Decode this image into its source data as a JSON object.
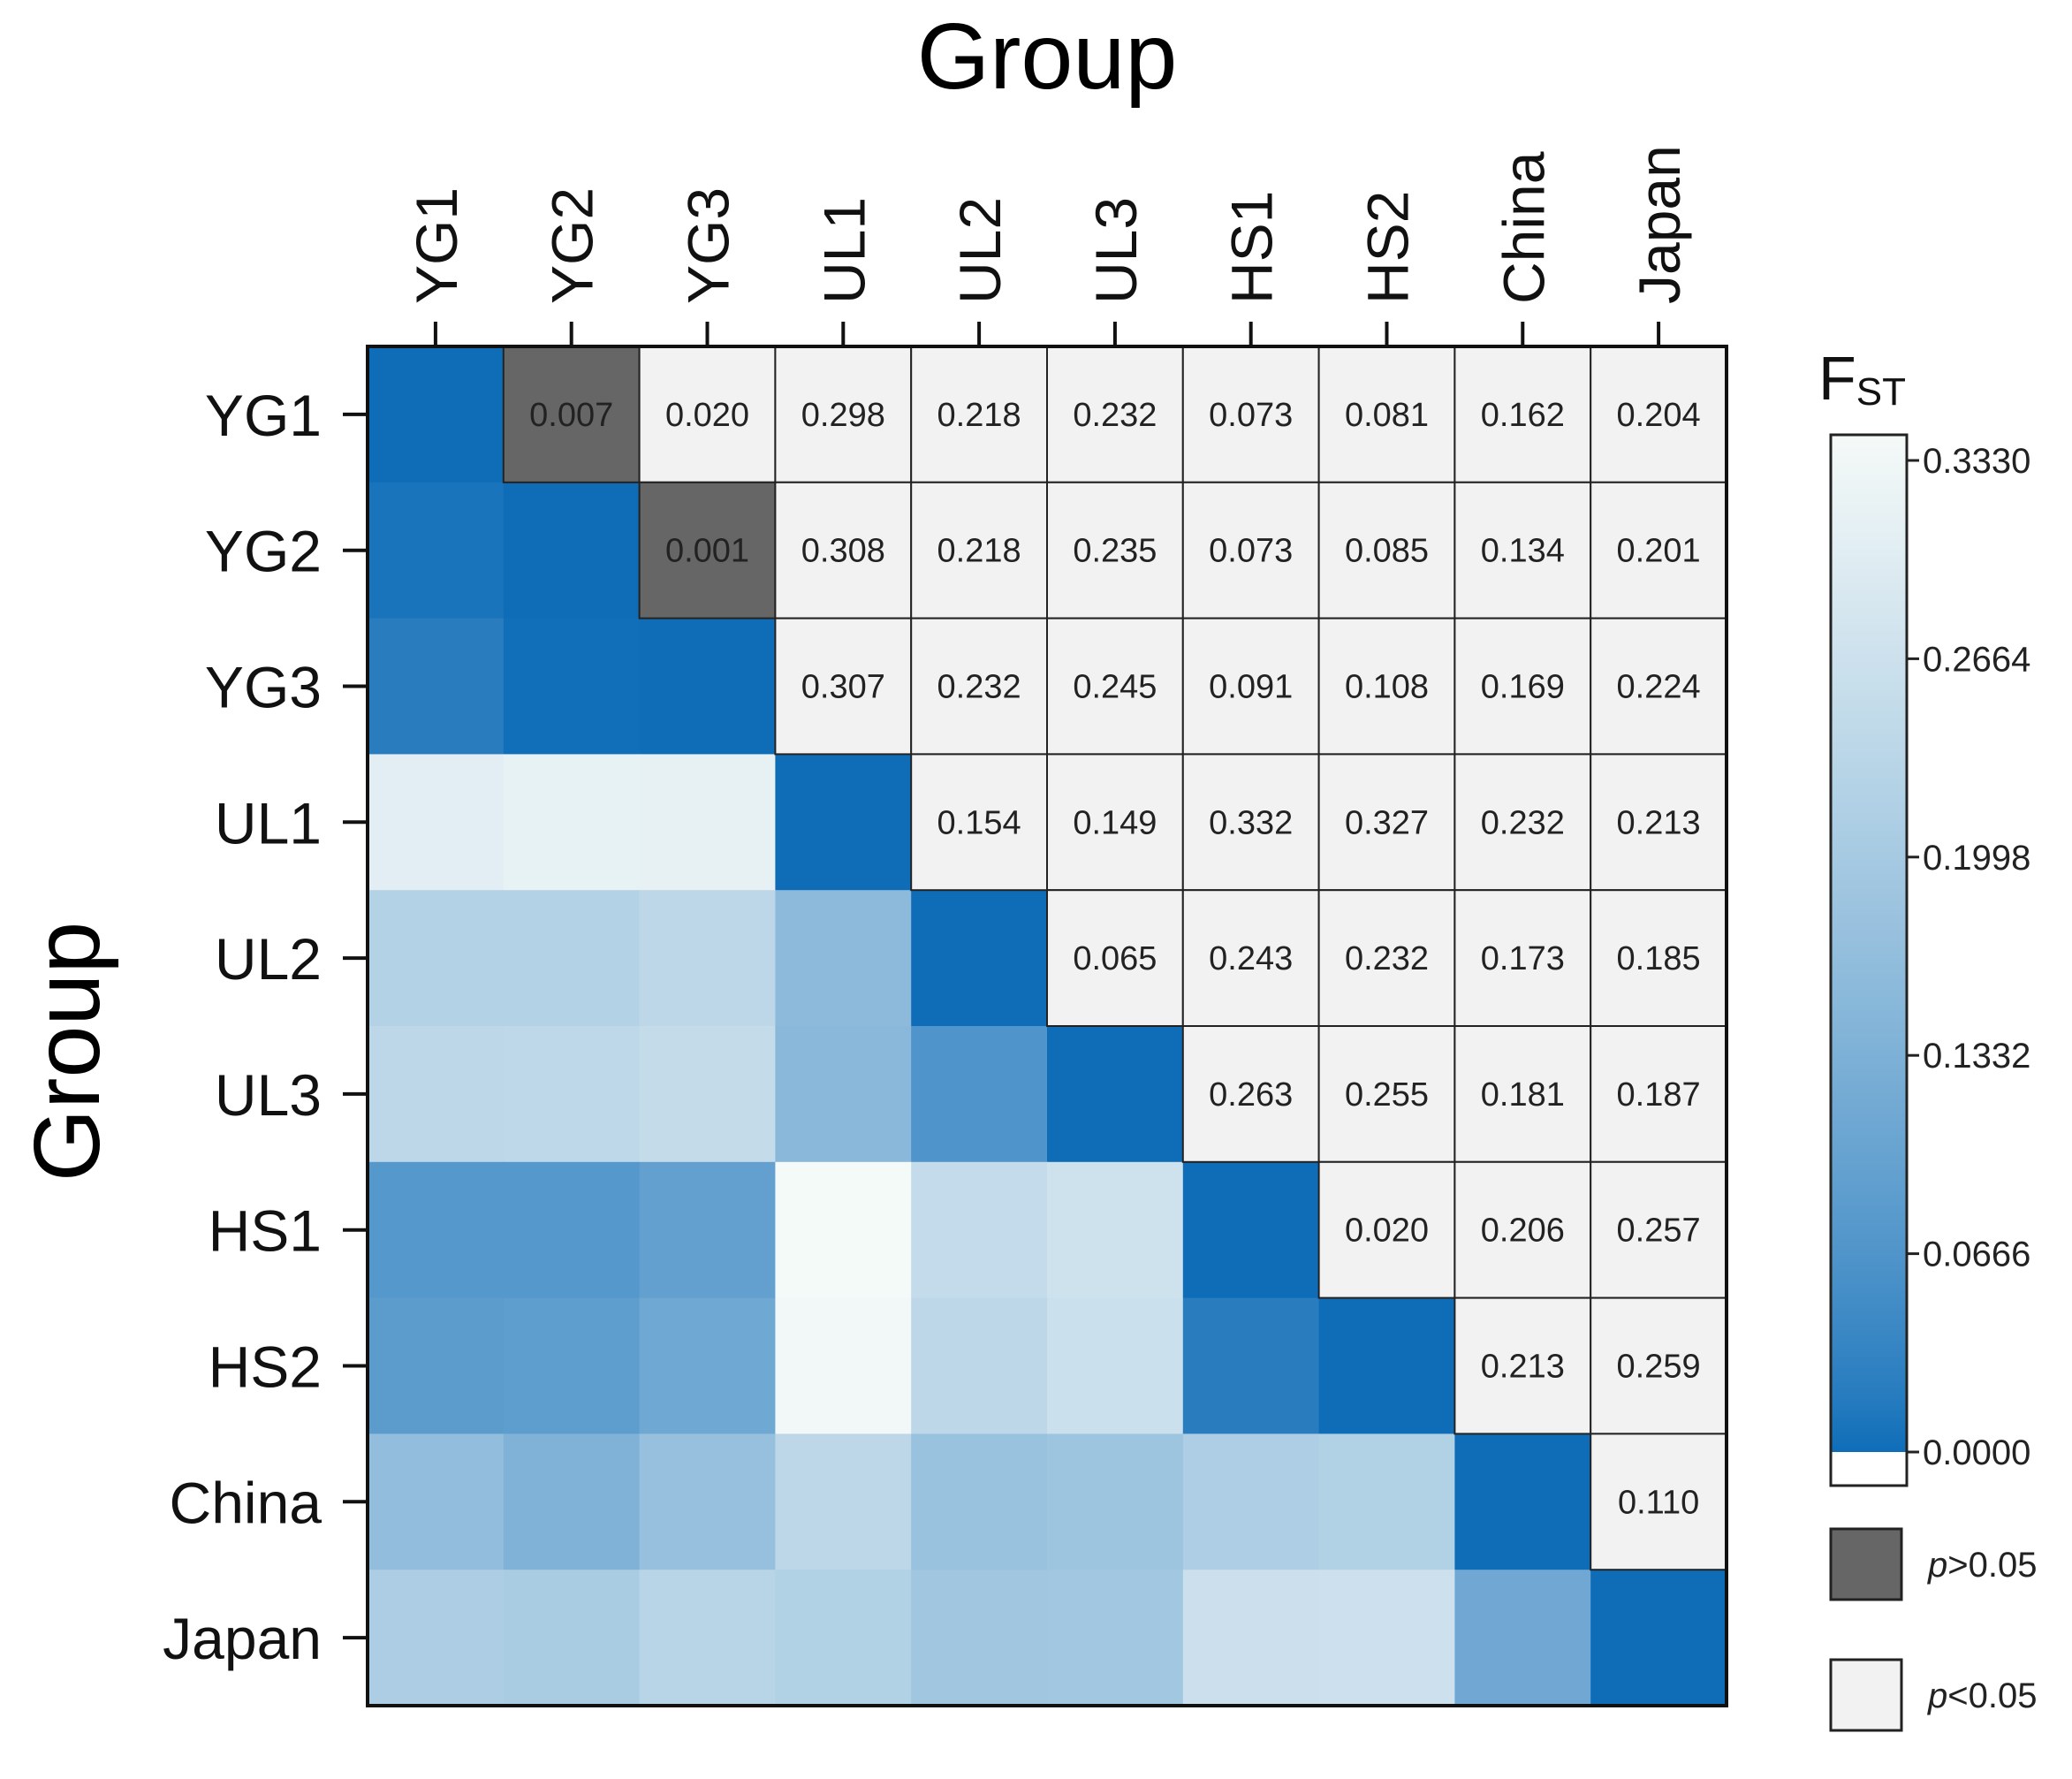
{
  "chart_data": {
    "type": "heatmap",
    "title": "Group",
    "xlabel": "Group",
    "ylabel": "Group",
    "groups": [
      "YG1",
      "YG2",
      "YG3",
      "UL1",
      "UL2",
      "UL3",
      "HS1",
      "HS2",
      "China",
      "Japan"
    ],
    "fst_matrix": [
      [
        0.0,
        0.007,
        0.02,
        0.298,
        0.218,
        0.232,
        0.073,
        0.081,
        0.162,
        0.204
      ],
      [
        0.007,
        0.0,
        0.001,
        0.308,
        0.218,
        0.235,
        0.073,
        0.085,
        0.134,
        0.201
      ],
      [
        0.02,
        0.001,
        0.0,
        0.307,
        0.232,
        0.245,
        0.091,
        0.108,
        0.169,
        0.224
      ],
      [
        0.298,
        0.308,
        0.307,
        0.0,
        0.154,
        0.149,
        0.332,
        0.327,
        0.232,
        0.213
      ],
      [
        0.218,
        0.218,
        0.232,
        0.154,
        0.0,
        0.065,
        0.243,
        0.232,
        0.173,
        0.185
      ],
      [
        0.232,
        0.235,
        0.245,
        0.149,
        0.065,
        0.0,
        0.263,
        0.255,
        0.181,
        0.187
      ],
      [
        0.073,
        0.073,
        0.091,
        0.332,
        0.243,
        0.263,
        0.0,
        0.02,
        0.206,
        0.257
      ],
      [
        0.081,
        0.085,
        0.108,
        0.327,
        0.232,
        0.255,
        0.02,
        0.0,
        0.213,
        0.259
      ],
      [
        0.162,
        0.134,
        0.169,
        0.232,
        0.173,
        0.181,
        0.206,
        0.213,
        0.0,
        0.11
      ],
      [
        0.204,
        0.201,
        0.224,
        0.213,
        0.185,
        0.187,
        0.257,
        0.259,
        0.11,
        0.0
      ]
    ],
    "upper_labels": [
      [
        "",
        "0.007",
        "0.020",
        "0.298",
        "0.218",
        "0.232",
        "0.073",
        "0.081",
        "0.162",
        "0.204"
      ],
      [
        "",
        "",
        "0.001",
        "0.308",
        "0.218",
        "0.235",
        "0.073",
        "0.085",
        "0.134",
        "0.201"
      ],
      [
        "",
        "",
        "",
        "0.307",
        "0.232",
        "0.245",
        "0.091",
        "0.108",
        "0.169",
        "0.224"
      ],
      [
        "",
        "",
        "",
        "",
        "0.154",
        "0.149",
        "0.332",
        "0.327",
        "0.232",
        "0.213"
      ],
      [
        "",
        "",
        "",
        "",
        "",
        "0.065",
        "0.243",
        "0.232",
        "0.173",
        "0.185"
      ],
      [
        "",
        "",
        "",
        "",
        "",
        "",
        "0.263",
        "0.255",
        "0.181",
        "0.187"
      ],
      [
        "",
        "",
        "",
        "",
        "",
        "",
        "",
        "0.020",
        "0.206",
        "0.257"
      ],
      [
        "",
        "",
        "",
        "",
        "",
        "",
        "",
        "",
        "0.213",
        "0.259"
      ],
      [
        "",
        "",
        "",
        "",
        "",
        "",
        "",
        "",
        "",
        "0.110"
      ],
      [
        "",
        "",
        "",
        "",
        "",
        "",
        "",
        "",
        "",
        ""
      ]
    ],
    "nonsignificant_pairs": [
      [
        0,
        1
      ],
      [
        1,
        2
      ]
    ],
    "colorbar": {
      "label_main": "F",
      "label_sub": "ST",
      "ticks": [
        "0.3330",
        "0.2664",
        "0.1998",
        "0.1332",
        "0.0666",
        "0.0000"
      ],
      "range": [
        0.0,
        0.333
      ]
    },
    "legend": [
      {
        "prefix": "p",
        "suffix": ">0.05",
        "color": "#666666"
      },
      {
        "prefix": "p",
        "suffix": "<0.05",
        "color": "#f2f2f2"
      }
    ]
  },
  "colors": {
    "low": "#0f6db8",
    "high": "#f5faf8",
    "significant_cell": "#f2f2f2",
    "nonsignificant_cell": "#666666"
  }
}
